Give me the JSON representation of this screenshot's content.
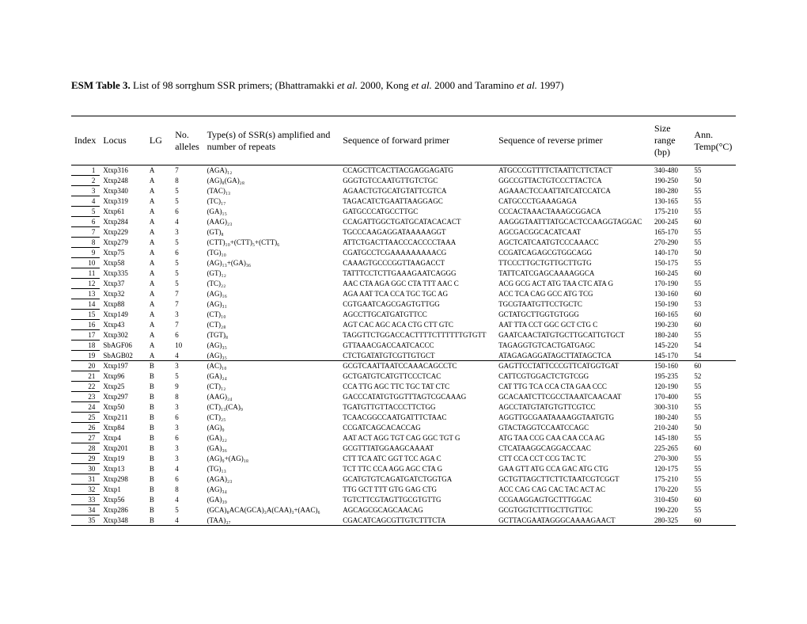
{
  "title": {
    "prefix_bold": "ESM Table 3.",
    "rest_1": " List of 98 sorrghum SSR primers; (Bhattramakki ",
    "it1": "et al.",
    "rest_2": " 2000, Kong ",
    "it2": "et al.",
    "rest_3": " 2000 and  Taramino ",
    "it3": "et al.",
    "rest_4": " 1997)"
  },
  "headers": {
    "index": "Index",
    "locus": "Locus",
    "lg": "LG",
    "alleles": "No. alleles",
    "type": "Type(s) of SSR(s) amplified and number of repeats",
    "fwd": "Sequence of forward primer",
    "rev": "Sequence of reverse primer",
    "size": "Size range (bp)",
    "temp": "Ann. Temp(°C)"
  },
  "rows": [
    {
      "i": "1",
      "locus": "Xtxp316",
      "lg": "A",
      "all": "7",
      "type": "(AGA)₁₂",
      "fwd": "CCAGCTTCACTTACGAGGAGATG",
      "rev": "ATGCCCGTTTTCTAATTCTTCTACT",
      "size": "340-480",
      "t": "55"
    },
    {
      "i": "2",
      "locus": "Xtxp248",
      "lg": "A",
      "all": "8",
      "type": "(AG)₈(GA)₂₈",
      "fwd": "GGGTGTCCAATGTTGTCTGC",
      "rev": "GGCCGTTACTGTCCCTTACTCA",
      "size": "190-250",
      "t": "50"
    },
    {
      "i": "3",
      "locus": "Xtxp340",
      "lg": "A",
      "all": "5",
      "type": "(TAC)₁₃",
      "fwd": "AGAACTGTGCATGTATTCGTCA",
      "rev": "AGAAACTCCAATTATCATCCATCA",
      "size": "180-280",
      "t": "55"
    },
    {
      "i": "4",
      "locus": "Xtxp319",
      "lg": "A",
      "all": "5",
      "type": "(TC)₁₇",
      "fwd": "TAGACATCTGAATTAAGGAGC",
      "rev": "CATGCCCTGAAAGAGA",
      "size": "130-165",
      "t": "55"
    },
    {
      "i": "5",
      "locus": "Xtxp61",
      "lg": "A",
      "all": "6",
      "type": "(GA)₁₅",
      "fwd": "GATGCCCATGCCTTGC",
      "rev": "CCCACTAAACTAAAGCGGACA",
      "size": "175-210",
      "t": "55"
    },
    {
      "i": "6",
      "locus": "Xtxp284",
      "lg": "A",
      "all": "4",
      "type": "(AAG)₂₃",
      "fwd": "CCAGATTGGCTGATGCATACACACT",
      "rev": "AAGGGTAATTTATGCACTCCAAGGTAGGAC",
      "size": "200-245",
      "t": "60"
    },
    {
      "i": "7",
      "locus": "Xtxp229",
      "lg": "A",
      "all": "3",
      "type": "(GT)₈",
      "fwd": "TGCCCAAGAGGATAAAAAGGT",
      "rev": "AGCGACGGCACATCAAT",
      "size": "165-170",
      "t": "55"
    },
    {
      "i": "8",
      "locus": "Xtxp279",
      "lg": "A",
      "all": "5",
      "type": "(CTT)₁₀+(CTT)₅+(CTT)₆",
      "fwd": "ATTCTGACTTAACCCACCCCTAAA",
      "rev": "AGCTCATCAATGTCCCAAACC",
      "size": "270-290",
      "t": "55"
    },
    {
      "i": "9",
      "locus": "Xtxp75",
      "lg": "A",
      "all": "6",
      "type": "(TG)₁₀",
      "fwd": "CGATGCCTCGAAAAAAAAACG",
      "rev": "CCGATCAGAGCGTGGCAGG",
      "size": "140-170",
      "t": "50"
    },
    {
      "i": "10",
      "locus": "Xtxp58",
      "lg": "A",
      "all": "5",
      "type": "(AG)₁₃+(GA)₃₆",
      "fwd": "CAAAGTGCCCGGTTAAGACCT",
      "rev": "TTCCCTTGCTGTTGCTTGTG",
      "size": "150-175",
      "t": "55"
    },
    {
      "i": "11",
      "locus": "Xtxp335",
      "lg": "A",
      "all": "5",
      "type": "(GT)₁₂",
      "fwd": "TATTTCCTCTTGAAAGAATCAGGG",
      "rev": "TATTCATCGAGCAAAAGGCA",
      "size": "160-245",
      "t": "60"
    },
    {
      "i": "12",
      "locus": "Xtxp37",
      "lg": "A",
      "all": "5",
      "type": "(TC)₂₂",
      "fwd": "AAC CTA AGA GGC CTA TTT AAC C",
      "rev": "ACG GCG ACT ATG TAA CTC ATA G",
      "size": "170-190",
      "t": "55"
    },
    {
      "i": "13",
      "locus": "Xtxp32",
      "lg": "A",
      "all": "7",
      "type": "(AG)₁₆",
      "fwd": "AGA AAT TCA CCA TGC TGC AG",
      "rev": "ACC TCA CAG GCC ATG TCG",
      "size": "130-160",
      "t": "60"
    },
    {
      "i": "14",
      "locus": "Xtxp88",
      "lg": "A",
      "all": "7",
      "type": "(AG)₃₁",
      "fwd": "CGTGAATCAGCGAGTGTTGG",
      "rev": "TGCGTAATGTTCCTGCTC",
      "size": "150-190",
      "t": "53"
    },
    {
      "i": "15",
      "locus": "Xtxp149",
      "lg": "A",
      "all": "3",
      "type": "(CT)₁₀",
      "fwd": "AGCCTTGCATGATGTTCC",
      "rev": "GCTATGCTTGGTGTGGG",
      "size": "160-165",
      "t": "60"
    },
    {
      "i": "16",
      "locus": "Xtxp43",
      "lg": "A",
      "all": "7",
      "type": "(CT)₂₈",
      "fwd": "AGT CAC AGC ACA CTG CTT GTC",
      "rev": "AAT TTA CCT GGC GCT CTG C",
      "size": "190-230",
      "t": "60"
    },
    {
      "i": "17",
      "locus": "Xtxp302",
      "lg": "A",
      "all": "6",
      "type": "(TGT)₈",
      "fwd": "TAGGTTCTGGACCACTTTTCTTTTTTGTGTT",
      "rev": "GAATCAACTATGTGCTTGCATTGTGCT",
      "size": "180-240",
      "t": "55"
    },
    {
      "i": "18",
      "locus": "SbAGF06",
      "lg": "A",
      "all": "10",
      "type": "(AG)₃₅",
      "fwd": "GTTAAACGACCAATCACCC",
      "rev": "TAGAGGTGTCACTGATGAGC",
      "size": "145-220",
      "t": "54"
    },
    {
      "i": "19",
      "locus": "SbAGB02",
      "lg": "A",
      "all": "4",
      "type": "(AG)₃₅",
      "fwd": "CTCTGATATGTCGTTGTGCT",
      "rev": "ATAGAGAGGATAGCTTATAGCTCA",
      "size": "145-170",
      "t": "54"
    },
    {
      "i": "20",
      "locus": "Xtxp197",
      "lg": "B",
      "all": "3",
      "type": "(AC)₁₀",
      "fwd": "GCGTCAATTAATCCAAACAGCCTC",
      "rev": "GAGTTCCTATTCCCGTTCATGGTGAT",
      "size": "150-160",
      "t": "60"
    },
    {
      "i": "21",
      "locus": "Xtxp96",
      "lg": "B",
      "all": "5",
      "type": "(GA)₂₄",
      "fwd": "GCTGATGTCATGTTCCCTCAC",
      "rev": "CATTCGTGGACTCTGTCGG",
      "size": "195-235",
      "t": "52"
    },
    {
      "i": "22",
      "locus": "Xtxp25",
      "lg": "B",
      "all": "9",
      "type": "(CT)₁₂",
      "fwd": "CCA TTG AGC TTC TGC TAT CTC",
      "rev": "CAT TTG TCA CCA CTA GAA CCC",
      "size": "120-190",
      "t": "55"
    },
    {
      "i": "23",
      "locus": "Xtxp297",
      "lg": "B",
      "all": "8",
      "type": "(AAG)₂₄",
      "fwd": "GACCCATATGTGGTTTAGTCGCAAAG",
      "rev": "GCACAATCTTCGCCTAAATCAACAAT",
      "size": "170-400",
      "t": "55"
    },
    {
      "i": "24",
      "locus": "Xtxp50",
      "lg": "B",
      "all": "3",
      "type": "(CT)₁₃(CA)₉",
      "fwd": "TGATGTTGTTACCCTTCTGG",
      "rev": "AGCCTATGTATGTGTTCGTCC",
      "size": "300-310",
      "t": "55"
    },
    {
      "i": "25",
      "locus": "Xtxp211",
      "lg": "B",
      "all": "6",
      "type": "(CT)₂₅",
      "fwd": "TCAACGGCCAATGATTTCTAAC",
      "rev": "AGGTTGCGAATAAAAGGTAATGTG",
      "size": "180-240",
      "t": "55"
    },
    {
      "i": "26",
      "locus": "Xtxp84",
      "lg": "B",
      "all": "3",
      "type": "(AG)₉",
      "fwd": "CCGATCAGCACACCAG",
      "rev": "GTACTAGGTCCAATCCAGC",
      "size": "210-240",
      "t": "50"
    },
    {
      "i": "27",
      "locus": "Xtxp4",
      "lg": "B",
      "all": "6",
      "type": "(GA)₂₂",
      "fwd": "AAT ACT AGG TGT CAG GGC TGT G",
      "rev": "ATG TAA CCG CAA CAA CCA AG",
      "size": "145-180",
      "t": "55"
    },
    {
      "i": "28",
      "locus": "Xtxp201",
      "lg": "B",
      "all": "3",
      "type": "(GA)₃₆",
      "fwd": "GCGTTTATGGAAGCAAAAT",
      "rev": "CTCATAAGGCAGGACCAAC",
      "size": "225-265",
      "t": "60"
    },
    {
      "i": "29",
      "locus": "Xtxp19",
      "lg": "B",
      "all": "3",
      "type": "(AG)₉+(AG)₁₈",
      "fwd": "CTT TCA ATC GGT TCC AGA C",
      "rev": "CTT CCA CCT CCG TAC TC",
      "size": "270-300",
      "t": "55"
    },
    {
      "i": "30",
      "locus": "Xtxp13",
      "lg": "B",
      "all": "4",
      "type": "(TG)₁₃",
      "fwd": "TCT TTC CCA AGG AGC CTA G",
      "rev": "GAA GTT ATG CCA GAC ATG CTG",
      "size": "120-175",
      "t": "55"
    },
    {
      "i": "31",
      "locus": "Xtxp298",
      "lg": "B",
      "all": "6",
      "type": "(AGA)₂₃",
      "fwd": "GCATGTGTCAGATGATCTGGTGA",
      "rev": "GCTGTTAGCTTCTTCTAATCGTCGGT",
      "size": "175-210",
      "t": "55"
    },
    {
      "i": "32",
      "locus": "Xtxp1",
      "lg": "B",
      "all": "8",
      "type": "(AG)₃₄",
      "fwd": "TTG GCT TTT GTG GAG CTG",
      "rev": "ACC CAG CAG CAC TAC ACT AC",
      "size": "170-220",
      "t": "55"
    },
    {
      "i": "33",
      "locus": "Xtxp56",
      "lg": "B",
      "all": "4",
      "type": "(GA)₃₉",
      "fwd": "TGTCTTCGTAGTTGCGTGTTG",
      "rev": "CCGAAGGAGTGCTTTGGAC",
      "size": "310-450",
      "t": "60"
    },
    {
      "i": "34",
      "locus": "Xtxp286",
      "lg": "B",
      "all": "5",
      "type": "(GCA)₈ACA(GCA)₃A(CAA)₃+(AAC)₆",
      "fwd": "AGCAGCGCAGCAACAG",
      "rev": "GCGTGGTCTTTGCTTGTTGC",
      "size": "190-220",
      "t": "55"
    },
    {
      "i": "35",
      "locus": "Xtxp348",
      "lg": "B",
      "all": "4",
      "type": "(TAA)₃₇",
      "fwd": "CGACATCAGCGTTGTCTTTCTA",
      "rev": "GCTTACGAATAGGGCAAAAGAACT",
      "size": "280-325",
      "t": "60"
    }
  ]
}
